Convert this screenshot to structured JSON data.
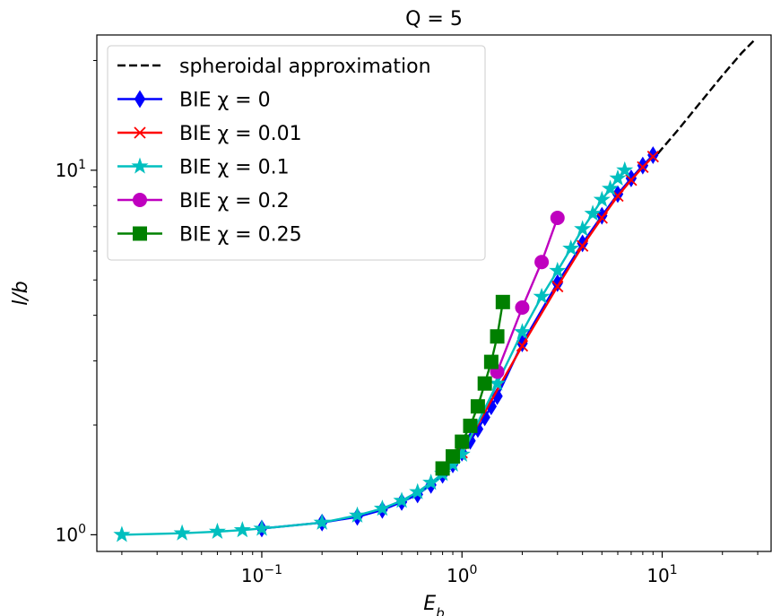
{
  "chart_data": {
    "type": "line",
    "title": "Q = 5",
    "xlabel": "E_b",
    "ylabel": "l/b",
    "xscale": "log",
    "yscale": "log",
    "xlim": [
      0.015,
      35
    ],
    "ylim": [
      0.9,
      23.5
    ],
    "grid": false,
    "legend_position": "top-left",
    "x_tick_labels": [
      {
        "value": 0.1,
        "base": "10",
        "exp": "−1"
      },
      {
        "value": 1,
        "base": "10",
        "exp": "0"
      },
      {
        "value": 10,
        "base": "10",
        "exp": "1"
      }
    ],
    "y_tick_labels": [
      {
        "value": 1,
        "base": "10",
        "exp": "0"
      },
      {
        "value": 10,
        "base": "10",
        "exp": "1"
      }
    ],
    "series": [
      {
        "name": "spheroidal approximation",
        "color": "#000000",
        "line_style": "dashed",
        "marker": "none",
        "x": [
          9.5,
          12,
          15,
          20,
          25,
          29
        ],
        "y": [
          11.1,
          12.9,
          15.0,
          18.2,
          21.0,
          22.8
        ]
      },
      {
        "name": "BIE χ = 0",
        "color": "#0000ff",
        "marker": "diamond",
        "x": [
          0.1,
          0.2,
          0.3,
          0.4,
          0.5,
          0.6,
          0.7,
          0.8,
          0.9,
          1.0,
          1.1,
          1.2,
          1.3,
          1.4,
          1.5,
          2.0,
          3.0,
          4.0,
          5.0,
          6.0,
          7.0,
          8.0,
          9.0
        ],
        "y": [
          1.04,
          1.08,
          1.12,
          1.17,
          1.23,
          1.29,
          1.37,
          1.46,
          1.56,
          1.68,
          1.81,
          1.95,
          2.1,
          2.25,
          2.4,
          3.35,
          4.9,
          6.3,
          7.5,
          8.6,
          9.5,
          10.3,
          11.0
        ]
      },
      {
        "name": "BIE χ = 0.01",
        "color": "#ff0000",
        "marker": "x",
        "x": [
          1.0,
          2.0,
          3.0,
          4.0,
          5.0,
          6.0,
          7.0,
          8.0,
          9.0
        ],
        "y": [
          1.68,
          3.3,
          4.8,
          6.2,
          7.4,
          8.5,
          9.4,
          10.2,
          10.9
        ]
      },
      {
        "name": "BIE χ = 0.1",
        "color": "#00bfbf",
        "marker": "star",
        "x": [
          0.02,
          0.04,
          0.06,
          0.08,
          0.1,
          0.2,
          0.3,
          0.4,
          0.5,
          0.6,
          0.7,
          0.8,
          0.9,
          1.0,
          1.5,
          2.0,
          2.5,
          3.0,
          3.5,
          4.0,
          4.5,
          5.0,
          5.5,
          6.0,
          6.5
        ],
        "y": [
          1.0,
          1.01,
          1.02,
          1.03,
          1.04,
          1.08,
          1.13,
          1.18,
          1.24,
          1.31,
          1.39,
          1.47,
          1.56,
          1.66,
          2.6,
          3.6,
          4.5,
          5.3,
          6.1,
          6.9,
          7.6,
          8.3,
          8.9,
          9.5,
          10.0
        ]
      },
      {
        "name": "BIE χ = 0.2",
        "color": "#bf00bf",
        "marker": "circle",
        "x": [
          1.5,
          2.0,
          2.5,
          3.0
        ],
        "y": [
          2.8,
          4.2,
          5.6,
          7.4
        ]
      },
      {
        "name": "BIE χ = 0.25",
        "color": "#008000",
        "marker": "square",
        "x": [
          0.8,
          0.9,
          1.0,
          1.1,
          1.2,
          1.3,
          1.4,
          1.5,
          1.6
        ],
        "y": [
          1.52,
          1.64,
          1.8,
          1.99,
          2.25,
          2.6,
          2.98,
          3.5,
          4.35
        ]
      }
    ],
    "legend": [
      {
        "label": "spheroidal approximation",
        "series": 0
      },
      {
        "label": "BIE χ = 0",
        "series": 1
      },
      {
        "label": "BIE χ = 0.01",
        "series": 2
      },
      {
        "label": "BIE χ = 0.1",
        "series": 3
      },
      {
        "label": "BIE χ = 0.2",
        "series": 4
      },
      {
        "label": "BIE χ = 0.25",
        "series": 5
      }
    ]
  }
}
